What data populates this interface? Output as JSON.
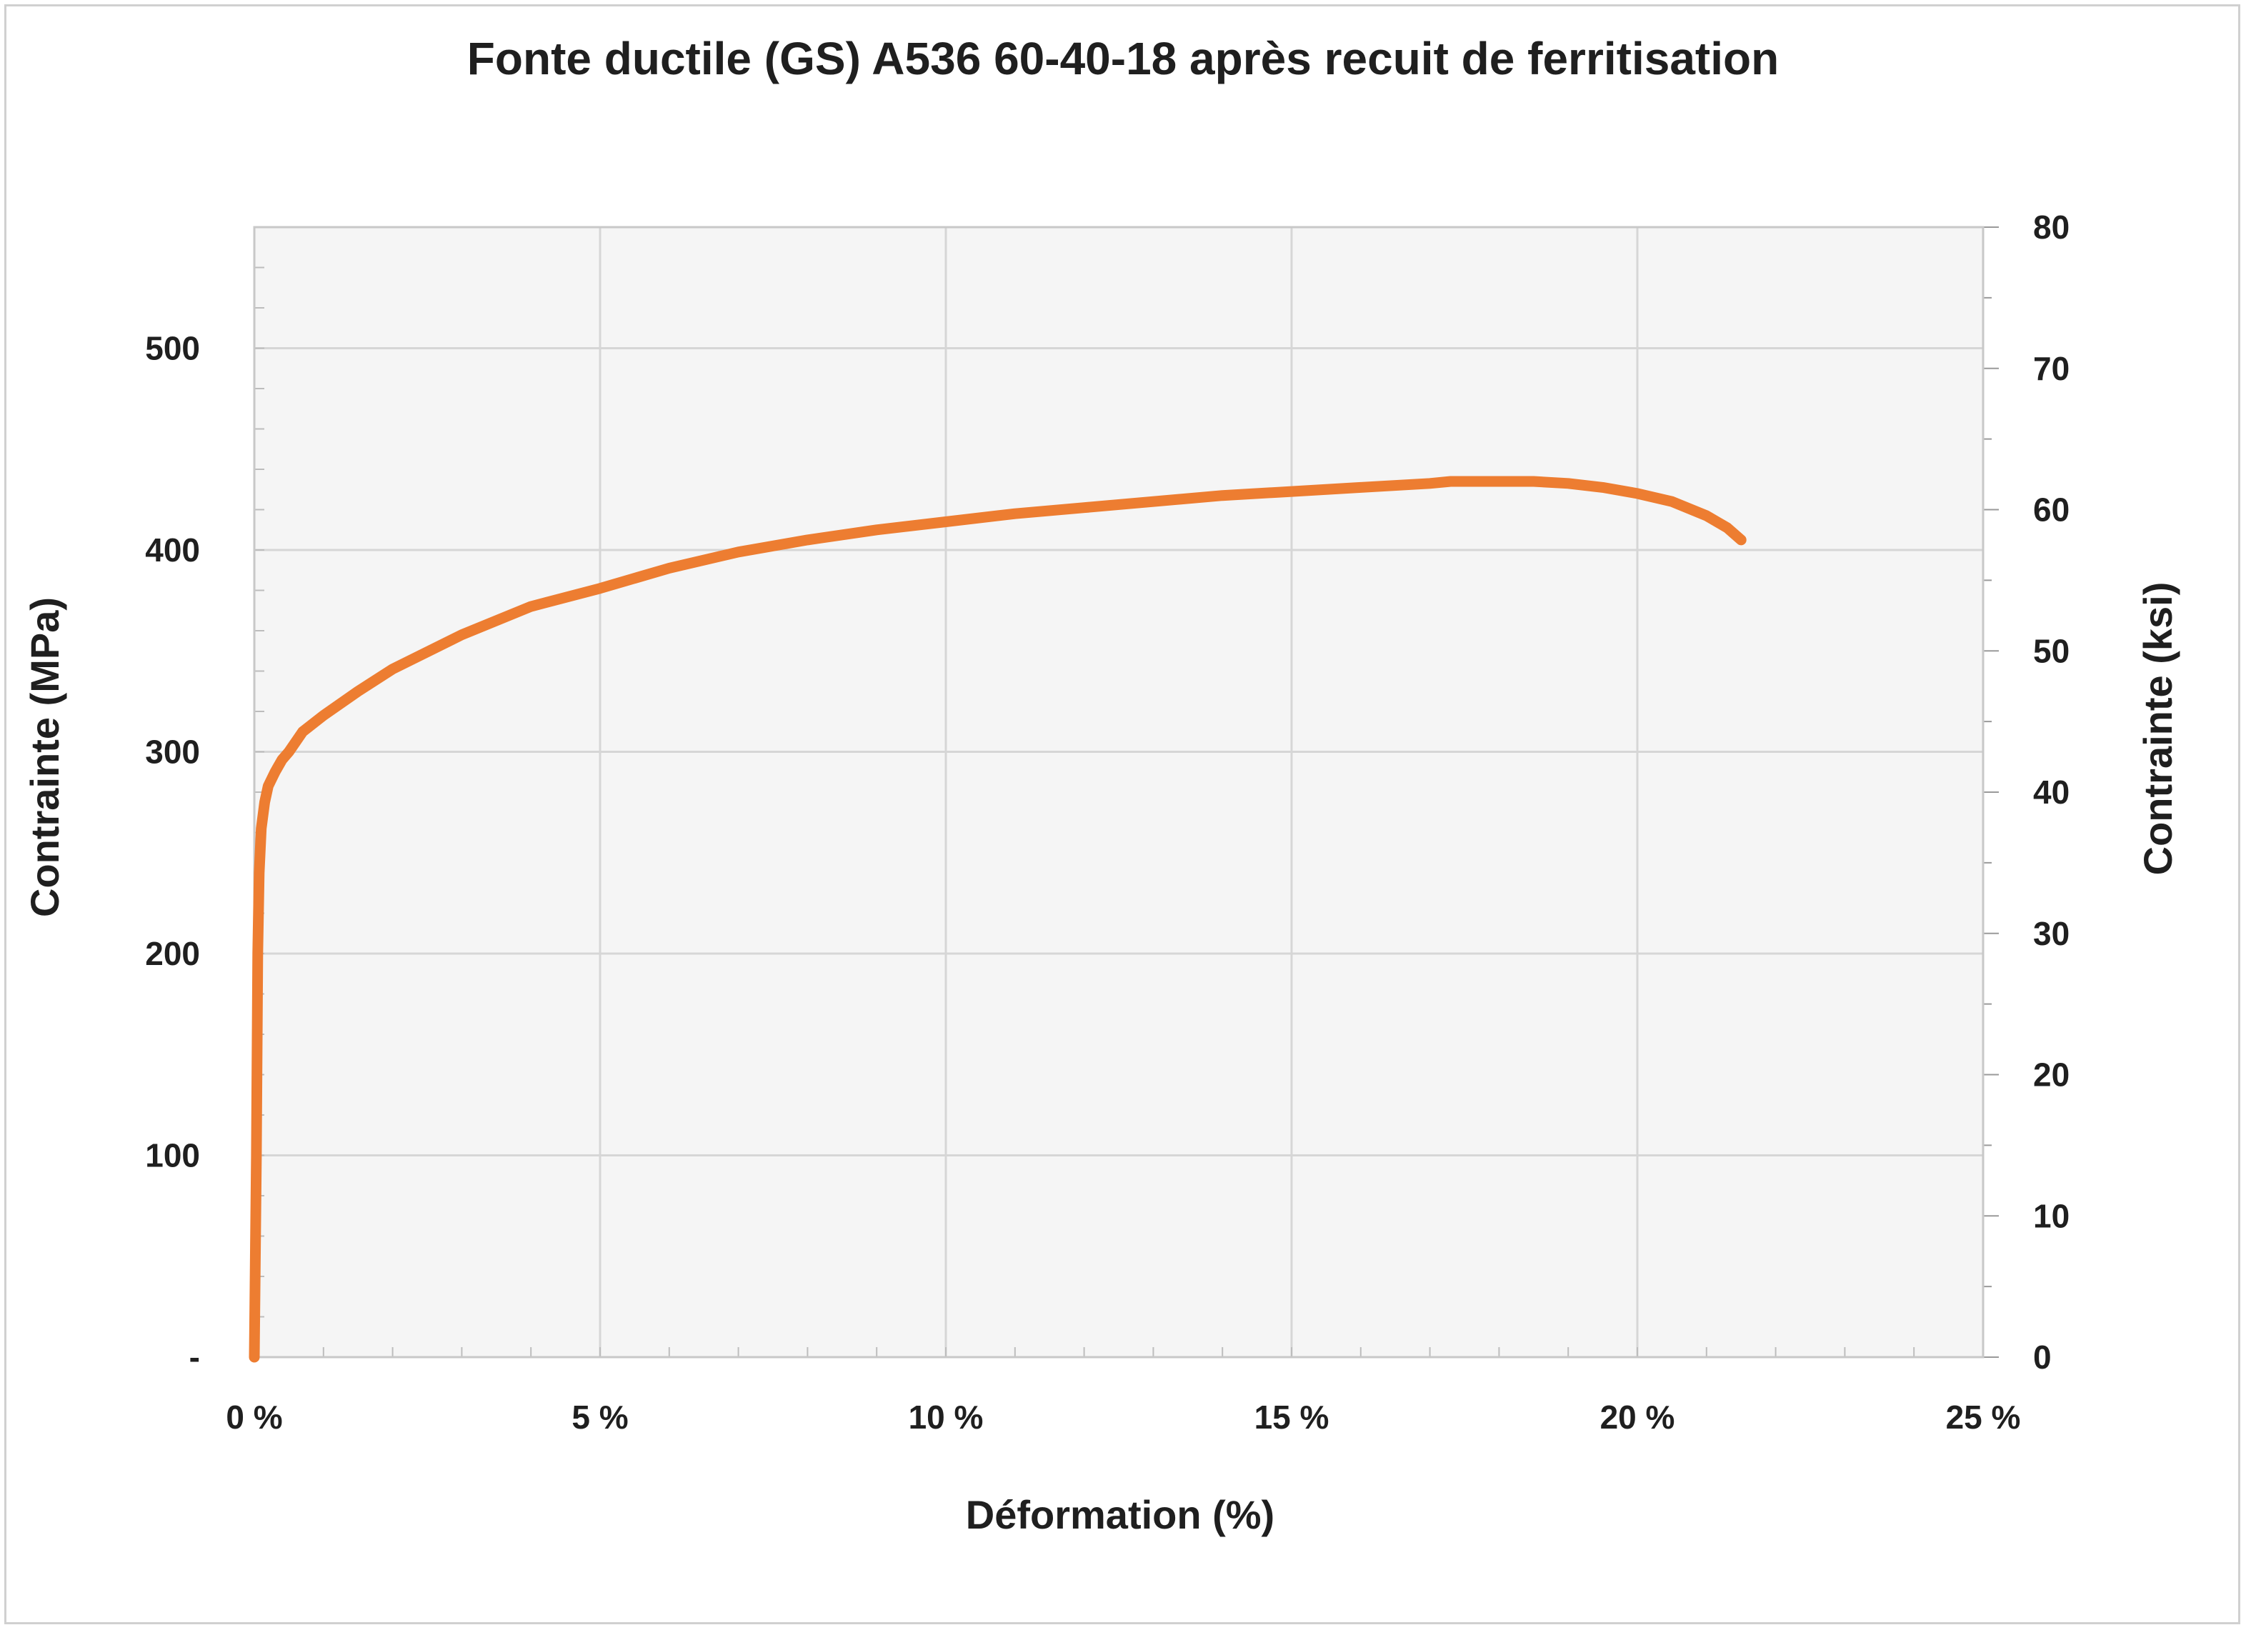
{
  "chart_data": {
    "type": "line",
    "title": "Fonte ductile (GS) A536 60-40-18 après recuit de ferritisation",
    "xlabel": "Déformation (%)",
    "ylabel": "Contrainte (MPa)",
    "y2label": "Contrainte (ksi)",
    "xlim": [
      0,
      25
    ],
    "ylim": [
      0,
      560
    ],
    "y2lim": [
      0,
      80
    ],
    "x_ticks": [
      "0 %",
      "5 %",
      "10 %",
      "15 %",
      "20 %",
      "25 %"
    ],
    "y_ticks": [
      "-",
      "100",
      "200",
      "300",
      "400",
      "500"
    ],
    "y2_ticks": [
      "0",
      "10",
      "20",
      "30",
      "40",
      "50",
      "60",
      "70",
      "80"
    ],
    "grid": true,
    "colors": {
      "series": "#ed7d31",
      "plot_bg": "#f5f5f5",
      "grid": "#d6d6d6"
    },
    "series": [
      {
        "x": [
          0,
          0.03,
          0.05,
          0.07,
          0.1,
          0.15,
          0.2,
          0.3,
          0.4,
          0.5,
          0.7,
          1.0,
          1.5,
          2.0,
          3.0,
          4.0,
          5.0,
          6.0,
          7.0,
          8.0,
          9.0,
          10.0,
          11.0,
          12.0,
          13.0,
          14.0,
          15.0,
          16.0,
          17.0,
          17.3,
          18.0,
          18.5,
          19.0,
          19.5,
          20.0,
          20.5,
          21.0,
          21.3,
          21.5
        ],
        "y": [
          0,
          100,
          200,
          240,
          262,
          275,
          283,
          290,
          296,
          300,
          310,
          318,
          330,
          341,
          358,
          372,
          381,
          391,
          399,
          405,
          410,
          414,
          418,
          421,
          424,
          427,
          429,
          431,
          433,
          434,
          434,
          434,
          433,
          431,
          428,
          424,
          417,
          411,
          405
        ]
      }
    ]
  }
}
